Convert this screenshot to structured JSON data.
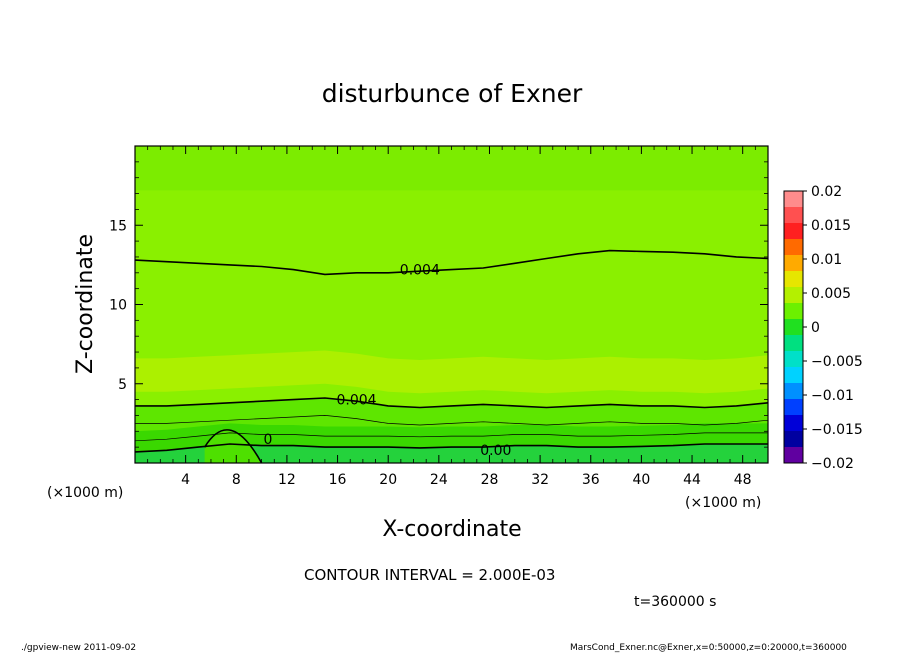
{
  "chart_data": {
    "type": "contour",
    "title": "disturbunce of Exner",
    "xlabel": "X-coordinate",
    "ylabel": "Z-coordinate",
    "x_unit": "(×1000 m)",
    "y_unit": "(×1000 m)",
    "xlim": [
      0,
      50
    ],
    "ylim": [
      0,
      20
    ],
    "xticks": [
      4,
      8,
      12,
      16,
      20,
      24,
      28,
      32,
      36,
      40,
      44,
      48
    ],
    "yticks": [
      5,
      10,
      15
    ],
    "colorbar": {
      "ticks": [
        0.02,
        0.015,
        0.01,
        0.005,
        0,
        -0.005,
        -0.01,
        -0.015,
        -0.02
      ],
      "tick_labels": [
        "0.02",
        "0.015",
        "0.01",
        "0.005",
        "0",
        "−0.005",
        "−0.01",
        "−0.015",
        "−0.02"
      ],
      "colors": [
        "#ff8c8c",
        "#ff5050",
        "#ff2020",
        "#ff6a00",
        "#ffaa00",
        "#e6e600",
        "#b4f000",
        "#6cf000",
        "#20e020",
        "#00e080",
        "#00e0c8",
        "#00d2ff",
        "#0090ff",
        "#0040ff",
        "#0000d8",
        "#0000a0",
        "#6000a0"
      ]
    },
    "contour_lines": [
      {
        "label": "0.004",
        "z": [
          12.8,
          12.7,
          12.6,
          12.5,
          12.4,
          12.2,
          11.9,
          12.0,
          12.0,
          12.1,
          12.2,
          12.3,
          12.6,
          12.9,
          13.2,
          13.4,
          13.35,
          13.3,
          13.2,
          13.0,
          12.9
        ]
      },
      {
        "label": "0.004",
        "z": [
          3.6,
          3.6,
          3.7,
          3.8,
          3.9,
          4.0,
          4.1,
          3.9,
          3.6,
          3.5,
          3.6,
          3.7,
          3.6,
          3.5,
          3.6,
          3.7,
          3.6,
          3.6,
          3.5,
          3.6,
          3.8
        ]
      },
      {
        "label": "0.00",
        "z": [
          0.7,
          0.8,
          1.0,
          1.2,
          1.1,
          1.1,
          1.0,
          1.0,
          1.0,
          0.95,
          1.0,
          1.0,
          1.1,
          1.1,
          1.0,
          1.0,
          1.05,
          1.1,
          1.2,
          1.2,
          1.2
        ]
      }
    ],
    "inline_labels": [
      "0.004",
      "0.004",
      "0",
      "0.00"
    ],
    "x_samples": [
      0,
      2.5,
      5,
      7.5,
      10,
      12.5,
      15,
      17.5,
      20,
      22.5,
      25,
      27.5,
      30,
      32.5,
      35,
      37.5,
      40,
      42.5,
      45,
      47.5,
      50
    ]
  },
  "annotations": {
    "contour_interval": "CONTOUR INTERVAL = 2.000E-03",
    "time": "t=360000 s",
    "footer_left": "./gpview-new   2011-09-02",
    "footer_right": "MarsCond_Exner.nc@Exner,x=0:50000,z=0:20000,t=360000"
  }
}
